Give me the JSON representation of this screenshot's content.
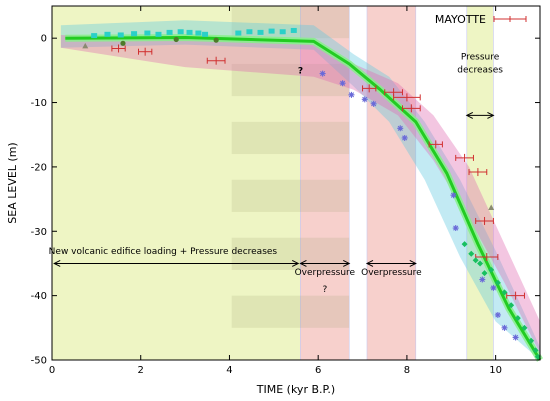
{
  "chart_data": {
    "type": "scatter",
    "title": "",
    "xlabel": "TIME (kyr B.P.)",
    "ylabel": "SEA LEVEL (m)",
    "xlim": [
      0,
      11
    ],
    "ylim": [
      -50,
      5
    ],
    "xticks": [
      "0",
      "2",
      "4",
      "6",
      "8",
      "10"
    ],
    "xtick_values": [
      0,
      2,
      4,
      6,
      8,
      10
    ],
    "yticks": [
      "0",
      "-10",
      "-20",
      "-30",
      "-40",
      "-50"
    ],
    "ytick_values": [
      0,
      -10,
      -20,
      -30,
      -40,
      -50
    ],
    "grid": false,
    "legend": {
      "placement": "top-right",
      "entries": [
        {
          "name": "MAYOTTE",
          "color": "#d03030"
        }
      ]
    },
    "background_bands": [
      {
        "x0": 0,
        "x1": 5.6,
        "color": "#eef5c4"
      },
      {
        "x0": 5.6,
        "x1": 6.7,
        "color": "#f7d0cc"
      },
      {
        "x0": 7.1,
        "x1": 8.2,
        "color": "#f7d0cc"
      },
      {
        "x0": 9.35,
        "x1": 9.95,
        "color": "#eef5c4"
      }
    ],
    "annotations": [
      {
        "text": "New volcanic edifice loading + Pressure decreases",
        "x": 2.5,
        "y": -33.5
      },
      {
        "text": "Overpressure",
        "x": 6.15,
        "y": -36.8
      },
      {
        "text": "?",
        "x": 6.15,
        "y": -39.4
      },
      {
        "text": "Overpressure",
        "x": 7.65,
        "y": -36.8
      },
      {
        "text": "?",
        "x": 5.6,
        "y": -5.5
      },
      {
        "text": "Pressure",
        "x": 9.65,
        "y": -3.3
      },
      {
        "text": "decreases",
        "x": 9.65,
        "y": -5.3
      }
    ],
    "arrows": [
      {
        "x0": 0.05,
        "x1": 5.55,
        "y": -35
      },
      {
        "x0": 5.6,
        "x1": 6.7,
        "y": -35
      },
      {
        "x0": 7.1,
        "x1": 8.2,
        "y": -35
      },
      {
        "x0": 9.35,
        "x1": 9.95,
        "y": -12
      }
    ],
    "series": [
      {
        "name": "MAYOTTE",
        "color": "#d03030",
        "marker": "errorbar",
        "points": [
          {
            "x": 1.5,
            "y": -1.6,
            "xerr": 0.15
          },
          {
            "x": 2.1,
            "y": -2.1,
            "xerr": 0.15
          },
          {
            "x": 3.7,
            "y": -3.5,
            "xerr": 0.2
          },
          {
            "x": 7.15,
            "y": -7.8,
            "xerr": 0.15
          },
          {
            "x": 7.7,
            "y": -8.4,
            "xerr": 0.2
          },
          {
            "x": 8.0,
            "y": -9.2,
            "xerr": 0.3
          },
          {
            "x": 8.1,
            "y": -10.9,
            "xerr": 0.2
          },
          {
            "x": 8.65,
            "y": -16.5,
            "xerr": 0.15
          },
          {
            "x": 9.3,
            "y": -18.6,
            "xerr": 0.2
          },
          {
            "x": 9.6,
            "y": -20.8,
            "xerr": 0.2
          },
          {
            "x": 9.75,
            "y": -28.4,
            "xerr": 0.2
          },
          {
            "x": 9.8,
            "y": -34.0,
            "xerr": 0.25
          },
          {
            "x": 10.45,
            "y": -40.0,
            "xerr": 0.2
          }
        ]
      },
      {
        "name": "",
        "color": "#2ad0c8",
        "marker": "square",
        "points": [
          {
            "x": 0.95,
            "y": 0.4
          },
          {
            "x": 1.25,
            "y": 0.6
          },
          {
            "x": 1.55,
            "y": 0.5
          },
          {
            "x": 1.85,
            "y": 0.7
          },
          {
            "x": 2.15,
            "y": 0.8
          },
          {
            "x": 2.4,
            "y": 0.6
          },
          {
            "x": 2.65,
            "y": 0.9
          },
          {
            "x": 2.9,
            "y": 1.0
          },
          {
            "x": 3.1,
            "y": 0.9
          },
          {
            "x": 3.3,
            "y": 0.8
          },
          {
            "x": 3.45,
            "y": 0.6
          },
          {
            "x": 4.2,
            "y": 0.8
          },
          {
            "x": 4.45,
            "y": 1.0
          },
          {
            "x": 4.7,
            "y": 0.9
          },
          {
            "x": 4.95,
            "y": 1.1
          },
          {
            "x": 5.2,
            "y": 1.0
          },
          {
            "x": 5.45,
            "y": 1.2
          }
        ]
      },
      {
        "name": "",
        "color": "#4d7a2a",
        "marker": "circle",
        "points": [
          {
            "x": 1.6,
            "y": -0.8
          },
          {
            "x": 2.8,
            "y": -0.2
          },
          {
            "x": 3.7,
            "y": -0.3
          }
        ]
      },
      {
        "name": "",
        "color": "#6a6ad8",
        "marker": "star",
        "points": [
          {
            "x": 6.1,
            "y": -5.5
          },
          {
            "x": 6.55,
            "y": -7.0
          },
          {
            "x": 6.75,
            "y": -8.8
          },
          {
            "x": 7.05,
            "y": -9.5
          },
          {
            "x": 7.25,
            "y": -10.2
          },
          {
            "x": 7.85,
            "y": -14.0
          },
          {
            "x": 7.95,
            "y": -15.5
          },
          {
            "x": 9.05,
            "y": -24.4
          },
          {
            "x": 9.1,
            "y": -29.5
          },
          {
            "x": 9.7,
            "y": -37.5
          },
          {
            "x": 9.95,
            "y": -38.8
          },
          {
            "x": 10.05,
            "y": -43.0
          },
          {
            "x": 10.2,
            "y": -45.0
          },
          {
            "x": 10.45,
            "y": -46.5
          }
        ]
      },
      {
        "name": "",
        "color": "#18c060",
        "marker": "diamond",
        "points": [
          {
            "x": 9.3,
            "y": -32.0
          },
          {
            "x": 9.45,
            "y": -33.5
          },
          {
            "x": 9.55,
            "y": -34.5
          },
          {
            "x": 9.65,
            "y": -35.0
          },
          {
            "x": 9.75,
            "y": -36.5
          },
          {
            "x": 9.9,
            "y": -36.0
          },
          {
            "x": 10.05,
            "y": -38.0
          },
          {
            "x": 10.2,
            "y": -39.5
          },
          {
            "x": 10.35,
            "y": -41.5
          },
          {
            "x": 10.5,
            "y": -43.5
          },
          {
            "x": 10.65,
            "y": -45.0
          },
          {
            "x": 10.8,
            "y": -47.0
          },
          {
            "x": 10.9,
            "y": -48.5
          },
          {
            "x": 10.95,
            "y": -49.5
          }
        ]
      },
      {
        "name": "",
        "color": "#8a8a70",
        "marker": "triangle",
        "points": [
          {
            "x": 0.75,
            "y": -1.2
          },
          {
            "x": 9.9,
            "y": -26.3
          }
        ]
      }
    ],
    "trend_line": {
      "color": "#22cc22",
      "points": [
        {
          "x": 0.3,
          "y": 0.0
        },
        {
          "x": 3.0,
          "y": 0.1
        },
        {
          "x": 5.9,
          "y": -0.5
        },
        {
          "x": 6.7,
          "y": -4.0
        },
        {
          "x": 7.4,
          "y": -8.0
        },
        {
          "x": 8.2,
          "y": -13.0
        },
        {
          "x": 8.9,
          "y": -21.0
        },
        {
          "x": 9.6,
          "y": -32.0
        },
        {
          "x": 10.3,
          "y": -42.0
        },
        {
          "x": 11.0,
          "y": -50.0
        }
      ]
    },
    "uncertainty_bands": [
      {
        "color": "#5ec8e0",
        "upper": [
          {
            "x": 0.2,
            "y": 2.0
          },
          {
            "x": 3.0,
            "y": 2.8
          },
          {
            "x": 5.9,
            "y": 2.0
          },
          {
            "x": 6.8,
            "y": -2.5
          },
          {
            "x": 7.6,
            "y": -6.0
          },
          {
            "x": 8.4,
            "y": -13.0
          },
          {
            "x": 9.2,
            "y": -22.0
          },
          {
            "x": 10.0,
            "y": -33.0
          },
          {
            "x": 11.0,
            "y": -48.0
          }
        ],
        "lower": [
          {
            "x": 11.0,
            "y": -50.0
          },
          {
            "x": 10.0,
            "y": -44.0
          },
          {
            "x": 9.2,
            "y": -34.0
          },
          {
            "x": 8.4,
            "y": -22.0
          },
          {
            "x": 7.6,
            "y": -13.0
          },
          {
            "x": 6.8,
            "y": -7.5
          },
          {
            "x": 5.9,
            "y": -1.8
          },
          {
            "x": 3.0,
            "y": -1.0
          },
          {
            "x": 0.2,
            "y": -1.5
          }
        ]
      },
      {
        "color": "#e06ab0",
        "upper": [
          {
            "x": 0.2,
            "y": 0.5
          },
          {
            "x": 3.0,
            "y": 0.0
          },
          {
            "x": 5.9,
            "y": -1.0
          },
          {
            "x": 6.8,
            "y": -4.0
          },
          {
            "x": 7.8,
            "y": -7.0
          },
          {
            "x": 8.6,
            "y": -12.0
          },
          {
            "x": 9.4,
            "y": -20.0
          },
          {
            "x": 10.2,
            "y": -32.0
          },
          {
            "x": 11.0,
            "y": -44.0
          }
        ],
        "lower": [
          {
            "x": 11.0,
            "y": -49.0
          },
          {
            "x": 10.2,
            "y": -38.0
          },
          {
            "x": 9.4,
            "y": -28.0
          },
          {
            "x": 8.6,
            "y": -19.0
          },
          {
            "x": 7.8,
            "y": -12.0
          },
          {
            "x": 6.8,
            "y": -8.0
          },
          {
            "x": 5.9,
            "y": -6.0
          },
          {
            "x": 3.0,
            "y": -4.5
          },
          {
            "x": 0.2,
            "y": -1.5
          }
        ]
      }
    ],
    "colors": {
      "axis": "#000000",
      "band_edge": "#c8c8f0"
    }
  }
}
